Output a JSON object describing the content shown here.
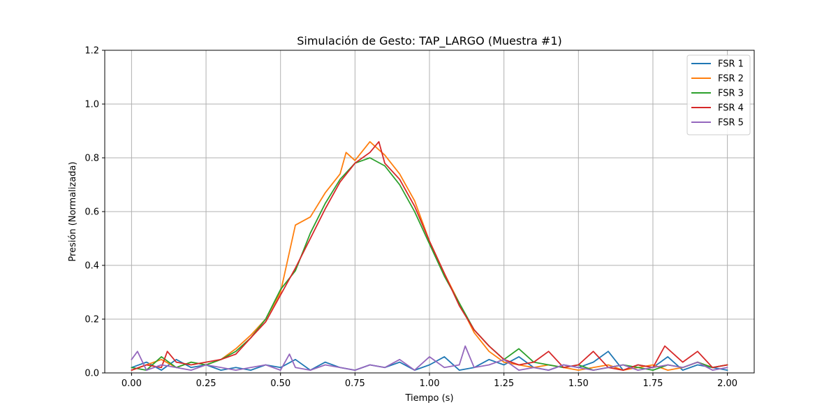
{
  "chart_data": {
    "type": "line",
    "title": "Simulación de Gesto: TAP_LARGO (Muestra #1)",
    "xlabel": "Tiempo (s)",
    "ylabel": "Presión (Normalizada)",
    "xlim": [
      -0.09,
      2.09
    ],
    "ylim": [
      0,
      1.2
    ],
    "xticks": [
      0.0,
      0.25,
      0.5,
      0.75,
      1.0,
      1.25,
      1.5,
      1.75,
      2.0
    ],
    "xtick_labels": [
      "0.00",
      "0.25",
      "0.50",
      "0.75",
      "1.00",
      "1.25",
      "1.50",
      "1.75",
      "2.00"
    ],
    "yticks": [
      0.0,
      0.2,
      0.4,
      0.6,
      0.8,
      1.0,
      1.2
    ],
    "ytick_labels": [
      "0.0",
      "0.2",
      "0.4",
      "0.6",
      "0.8",
      "1.0",
      "1.2"
    ],
    "grid": true,
    "legend_position": "top-right",
    "series": [
      {
        "name": "FSR 1",
        "color": "#1f77b4",
        "x": [
          0.0,
          0.05,
          0.1,
          0.15,
          0.2,
          0.25,
          0.3,
          0.35,
          0.4,
          0.45,
          0.5,
          0.55,
          0.6,
          0.65,
          0.7,
          0.75,
          0.8,
          0.85,
          0.9,
          0.95,
          1.0,
          1.05,
          1.1,
          1.15,
          1.2,
          1.25,
          1.3,
          1.35,
          1.4,
          1.45,
          1.5,
          1.55,
          1.6,
          1.65,
          1.7,
          1.75,
          1.8,
          1.85,
          1.9,
          1.95,
          2.0
        ],
        "values": [
          0.02,
          0.04,
          0.01,
          0.05,
          0.02,
          0.03,
          0.01,
          0.02,
          0.01,
          0.03,
          0.02,
          0.05,
          0.01,
          0.04,
          0.02,
          0.01,
          0.03,
          0.02,
          0.04,
          0.01,
          0.03,
          0.06,
          0.01,
          0.02,
          0.05,
          0.03,
          0.06,
          0.02,
          0.01,
          0.03,
          0.02,
          0.04,
          0.08,
          0.01,
          0.03,
          0.02,
          0.06,
          0.01,
          0.03,
          0.02,
          0.01
        ]
      },
      {
        "name": "FSR 2",
        "color": "#ff7f0e",
        "x": [
          0.0,
          0.05,
          0.1,
          0.15,
          0.2,
          0.25,
          0.3,
          0.35,
          0.4,
          0.45,
          0.5,
          0.55,
          0.6,
          0.65,
          0.7,
          0.72,
          0.75,
          0.8,
          0.85,
          0.9,
          0.95,
          1.0,
          1.05,
          1.1,
          1.15,
          1.2,
          1.25,
          1.3,
          1.35,
          1.4,
          1.45,
          1.5,
          1.55,
          1.6,
          1.65,
          1.7,
          1.75,
          1.8,
          1.85,
          1.9,
          1.95,
          2.0
        ],
        "values": [
          0.01,
          0.03,
          0.05,
          0.02,
          0.04,
          0.03,
          0.05,
          0.09,
          0.14,
          0.2,
          0.3,
          0.55,
          0.58,
          0.67,
          0.74,
          0.82,
          0.79,
          0.86,
          0.81,
          0.74,
          0.64,
          0.49,
          0.37,
          0.26,
          0.15,
          0.08,
          0.04,
          0.03,
          0.02,
          0.03,
          0.02,
          0.01,
          0.02,
          0.03,
          0.01,
          0.02,
          0.03,
          0.01,
          0.02,
          0.04,
          0.02,
          0.03
        ]
      },
      {
        "name": "FSR 3",
        "color": "#2ca02c",
        "x": [
          0.0,
          0.05,
          0.1,
          0.15,
          0.2,
          0.25,
          0.3,
          0.35,
          0.4,
          0.45,
          0.5,
          0.55,
          0.6,
          0.65,
          0.7,
          0.75,
          0.8,
          0.85,
          0.9,
          0.95,
          1.0,
          1.05,
          1.1,
          1.15,
          1.2,
          1.25,
          1.3,
          1.35,
          1.4,
          1.45,
          1.5,
          1.55,
          1.6,
          1.65,
          1.7,
          1.75,
          1.8,
          1.85,
          1.9,
          1.95,
          2.0
        ],
        "values": [
          0.02,
          0.01,
          0.06,
          0.02,
          0.04,
          0.03,
          0.05,
          0.08,
          0.13,
          0.2,
          0.31,
          0.38,
          0.52,
          0.63,
          0.72,
          0.78,
          0.8,
          0.77,
          0.7,
          0.6,
          0.48,
          0.36,
          0.26,
          0.16,
          0.1,
          0.05,
          0.09,
          0.04,
          0.03,
          0.02,
          0.03,
          0.01,
          0.02,
          0.03,
          0.02,
          0.01,
          0.03,
          0.02,
          0.04,
          0.02,
          0.03
        ]
      },
      {
        "name": "FSR 4",
        "color": "#d62728",
        "x": [
          0.0,
          0.05,
          0.1,
          0.12,
          0.15,
          0.2,
          0.25,
          0.3,
          0.35,
          0.4,
          0.45,
          0.5,
          0.55,
          0.6,
          0.65,
          0.7,
          0.75,
          0.8,
          0.83,
          0.85,
          0.9,
          0.95,
          1.0,
          1.05,
          1.1,
          1.15,
          1.2,
          1.25,
          1.3,
          1.35,
          1.4,
          1.45,
          1.5,
          1.55,
          1.6,
          1.65,
          1.7,
          1.75,
          1.79,
          1.85,
          1.9,
          1.95,
          2.0
        ],
        "values": [
          0.01,
          0.03,
          0.02,
          0.08,
          0.04,
          0.03,
          0.04,
          0.05,
          0.07,
          0.13,
          0.19,
          0.29,
          0.39,
          0.5,
          0.61,
          0.71,
          0.78,
          0.82,
          0.86,
          0.78,
          0.72,
          0.62,
          0.49,
          0.37,
          0.25,
          0.16,
          0.1,
          0.05,
          0.03,
          0.04,
          0.08,
          0.02,
          0.03,
          0.08,
          0.02,
          0.01,
          0.03,
          0.02,
          0.1,
          0.04,
          0.08,
          0.02,
          0.03
        ]
      },
      {
        "name": "FSR 5",
        "color": "#9467bd",
        "x": [
          0.0,
          0.02,
          0.05,
          0.1,
          0.15,
          0.2,
          0.25,
          0.3,
          0.35,
          0.4,
          0.45,
          0.5,
          0.53,
          0.55,
          0.6,
          0.65,
          0.7,
          0.75,
          0.8,
          0.85,
          0.9,
          0.95,
          1.0,
          1.05,
          1.1,
          1.12,
          1.15,
          1.2,
          1.25,
          1.3,
          1.35,
          1.4,
          1.45,
          1.5,
          1.55,
          1.6,
          1.65,
          1.7,
          1.75,
          1.8,
          1.85,
          1.9,
          1.95,
          2.0
        ],
        "values": [
          0.05,
          0.08,
          0.01,
          0.03,
          0.02,
          0.01,
          0.03,
          0.02,
          0.01,
          0.02,
          0.03,
          0.01,
          0.07,
          0.02,
          0.01,
          0.03,
          0.02,
          0.01,
          0.03,
          0.02,
          0.05,
          0.01,
          0.06,
          0.02,
          0.03,
          0.1,
          0.02,
          0.03,
          0.05,
          0.01,
          0.02,
          0.01,
          0.03,
          0.02,
          0.01,
          0.02,
          0.03,
          0.01,
          0.02,
          0.03,
          0.02,
          0.04,
          0.01,
          0.02
        ]
      }
    ]
  }
}
